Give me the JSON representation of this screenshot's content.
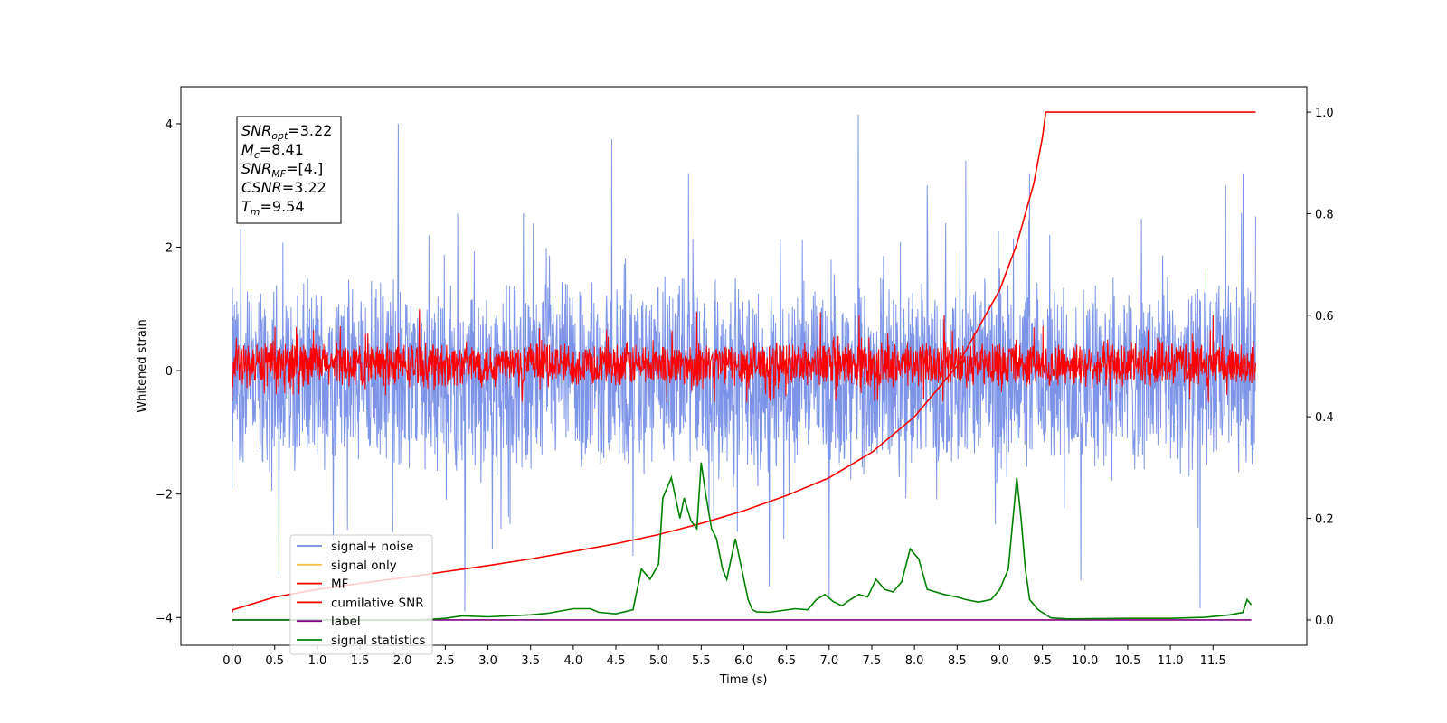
{
  "chart_data": {
    "type": "line",
    "xlabel": "Time (s)",
    "ylabel": "Whitened strain",
    "xlim": [
      -0.6,
      12.6
    ],
    "ylim_left": [
      -4.45,
      4.6
    ],
    "ylim_right": [
      -0.05,
      1.05
    ],
    "x_ticks": [
      "0.0",
      "0.5",
      "1.0",
      "1.5",
      "2.0",
      "2.5",
      "3.0",
      "3.5",
      "4.0",
      "4.5",
      "5.0",
      "5.5",
      "6.0",
      "6.5",
      "7.0",
      "7.5",
      "8.0",
      "8.5",
      "9.0",
      "9.5",
      "10.0",
      "10.5",
      "11.0",
      "11.5"
    ],
    "x_tick_values": [
      0,
      0.5,
      1,
      1.5,
      2,
      2.5,
      3,
      3.5,
      4,
      4.5,
      5,
      5.5,
      6,
      6.5,
      7,
      7.5,
      8,
      8.5,
      9,
      9.5,
      10,
      10.5,
      11,
      11.5
    ],
    "y_left_ticks": [
      "4",
      "2",
      "0",
      "−2",
      "−4"
    ],
    "y_left_tick_values": [
      4,
      2,
      0,
      -2,
      -4
    ],
    "y_right_ticks": [
      "1.0",
      "0.8",
      "0.6",
      "0.4",
      "0.2",
      "0.0"
    ],
    "y_right_tick_values": [
      1.0,
      0.8,
      0.6,
      0.4,
      0.2,
      0.0
    ],
    "legend": {
      "placement": "lower-left",
      "entries": [
        {
          "label": "signal+ noise",
          "color": "#6f8ae6"
        },
        {
          "label": "signal only",
          "color": "#f5c04a"
        },
        {
          "label": "MF",
          "color": "#ff0000"
        },
        {
          "label": "cumilative SNR",
          "color": "#ff0000"
        },
        {
          "label": "label",
          "color": "#800080"
        },
        {
          "label": "signal statistics",
          "color": "#008000"
        }
      ]
    },
    "annotation": {
      "lines": [
        {
          "sym": "SNR",
          "sub": "opt",
          "val": "=3.22"
        },
        {
          "sym": "M",
          "sub": "c",
          "val": "=8.41"
        },
        {
          "sym": "SNR",
          "sub": "MF",
          "val": "=[4.]"
        },
        {
          "sym": "CSNR",
          "sub": "",
          "val": "=3.22"
        },
        {
          "sym": "T",
          "sub": "m",
          "val": "=9.54"
        }
      ]
    },
    "series": [
      {
        "name": "signal+ noise",
        "axis": "left",
        "color": "#6f8ae6",
        "kind": "noise",
        "t_range": [
          0,
          12.0
        ],
        "band_low": -1.8,
        "band_high": 1.6,
        "peaks": [
          [
            0.0,
            -1.9
          ],
          [
            0.1,
            2.3
          ],
          [
            0.55,
            -3.3
          ],
          [
            1.95,
            4.0
          ],
          [
            2.73,
            -3.9
          ],
          [
            3.05,
            -2.9
          ],
          [
            4.45,
            3.75
          ],
          [
            4.7,
            -3.0
          ],
          [
            5.35,
            3.2
          ],
          [
            6.3,
            -3.5
          ],
          [
            7.34,
            4.15
          ],
          [
            7.0,
            -3.7
          ],
          [
            8.15,
            3.0
          ],
          [
            8.6,
            3.4
          ],
          [
            9.35,
            3.2
          ],
          [
            9.95,
            -3.4
          ],
          [
            11.35,
            -3.85
          ],
          [
            11.65,
            3.0
          ],
          [
            11.85,
            3.2
          ],
          [
            12.0,
            2.5
          ]
        ]
      },
      {
        "name": "MF",
        "axis": "left",
        "color": "#ff0000",
        "kind": "noise",
        "t_range": [
          0,
          12.0
        ],
        "band_low": -0.3,
        "band_high": 0.5,
        "peaks": [
          [
            2.2,
            1.0
          ],
          [
            5.45,
            0.95
          ],
          [
            6.9,
            0.95
          ],
          [
            7.35,
            0.9
          ],
          [
            8.35,
            0.9
          ],
          [
            11.5,
            0.9
          ],
          [
            0.0,
            -0.5
          ],
          [
            3.4,
            -0.45
          ]
        ]
      },
      {
        "name": "cumilative SNR",
        "axis": "right",
        "color": "#ff0000",
        "x": [
          0.0,
          0.01,
          0.5,
          1.0,
          1.5,
          2.0,
          2.5,
          3.0,
          3.5,
          4.0,
          4.5,
          5.0,
          5.5,
          6.0,
          6.5,
          7.0,
          7.5,
          8.0,
          8.5,
          9.0,
          9.2,
          9.4,
          9.5,
          9.54,
          12.0
        ],
        "y": [
          0.015,
          0.02,
          0.045,
          0.06,
          0.072,
          0.083,
          0.095,
          0.107,
          0.12,
          0.135,
          0.15,
          0.168,
          0.19,
          0.215,
          0.245,
          0.28,
          0.33,
          0.4,
          0.5,
          0.65,
          0.74,
          0.86,
          0.95,
          1.0,
          1.0
        ]
      },
      {
        "name": "label",
        "axis": "right",
        "color": "#800080",
        "x": [
          0.0,
          11.95
        ],
        "y": [
          0.0,
          0.0
        ]
      },
      {
        "name": "signal statistics",
        "axis": "right",
        "color": "#008000",
        "x": [
          0.0,
          2.2,
          2.5,
          2.7,
          3.0,
          3.5,
          3.7,
          4.0,
          4.1,
          4.2,
          4.3,
          4.5,
          4.7,
          4.8,
          4.9,
          5.0,
          5.05,
          5.15,
          5.25,
          5.3,
          5.38,
          5.45,
          5.5,
          5.55,
          5.62,
          5.68,
          5.75,
          5.8,
          5.9,
          6.0,
          6.05,
          6.1,
          6.15,
          6.3,
          6.6,
          6.75,
          6.85,
          6.95,
          7.05,
          7.15,
          7.25,
          7.35,
          7.45,
          7.55,
          7.65,
          7.75,
          7.85,
          7.95,
          8.05,
          8.15,
          8.25,
          8.35,
          8.5,
          8.6,
          8.75,
          8.9,
          9.0,
          9.1,
          9.2,
          9.25,
          9.3,
          9.35,
          9.45,
          9.6,
          9.8,
          10.5,
          11.0,
          11.4,
          11.7,
          11.85,
          11.9,
          11.95
        ],
        "y": [
          0.0,
          0.0,
          0.003,
          0.008,
          0.006,
          0.01,
          0.013,
          0.022,
          0.022,
          0.022,
          0.015,
          0.012,
          0.02,
          0.1,
          0.08,
          0.11,
          0.24,
          0.28,
          0.2,
          0.24,
          0.195,
          0.18,
          0.31,
          0.25,
          0.18,
          0.16,
          0.1,
          0.08,
          0.16,
          0.08,
          0.04,
          0.02,
          0.016,
          0.015,
          0.022,
          0.02,
          0.04,
          0.05,
          0.036,
          0.028,
          0.04,
          0.05,
          0.045,
          0.08,
          0.06,
          0.055,
          0.075,
          0.14,
          0.12,
          0.06,
          0.055,
          0.05,
          0.045,
          0.04,
          0.035,
          0.04,
          0.06,
          0.1,
          0.28,
          0.2,
          0.1,
          0.04,
          0.02,
          0.004,
          0.002,
          0.003,
          0.003,
          0.005,
          0.01,
          0.015,
          0.04,
          0.03
        ]
      }
    ]
  }
}
